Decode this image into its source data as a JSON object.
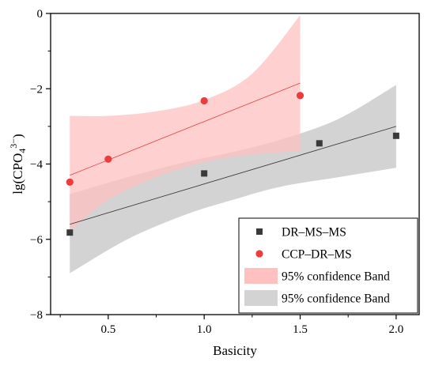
{
  "chart_data": {
    "type": "scatter",
    "xlabel": "Basicity",
    "ylabel": "lg(CPO4 3−)",
    "ylabel_parts": {
      "main": "lg(CPO",
      "sub": "4",
      "sup": "3−",
      "close": ")"
    },
    "xlim": [
      0.2,
      2.12
    ],
    "ylim": [
      -8,
      0
    ],
    "xticks": [
      0.5,
      1.0,
      1.5,
      2.0
    ],
    "xtick_labels": [
      "0.5",
      "1.0",
      "1.5",
      "2.0"
    ],
    "yticks": [
      0,
      -2,
      -4,
      -6,
      -8
    ],
    "ytick_labels": [
      "0",
      "−2",
      "−4",
      "−6",
      "−8"
    ],
    "grid": false,
    "legend_position": "bottom-right",
    "series": [
      {
        "name": "DR–MS–MS",
        "marker": "square",
        "color": "#3a3a3a",
        "points": [
          [
            0.3,
            -5.82
          ],
          [
            1.0,
            -4.25
          ],
          [
            1.6,
            -3.45
          ],
          [
            2.0,
            -3.25
          ]
        ],
        "fit_line": [
          [
            0.3,
            -5.6
          ],
          [
            2.0,
            -3.0
          ]
        ],
        "band_upper": [
          [
            0.3,
            -4.8
          ],
          [
            0.6,
            -4.35
          ],
          [
            0.9,
            -3.95
          ],
          [
            1.15,
            -3.68
          ],
          [
            1.4,
            -3.35
          ],
          [
            1.7,
            -2.8
          ],
          [
            2.0,
            -1.9
          ]
        ],
        "band_lower": [
          [
            0.3,
            -6.9
          ],
          [
            0.6,
            -6.0
          ],
          [
            0.9,
            -5.35
          ],
          [
            1.15,
            -4.95
          ],
          [
            1.4,
            -4.6
          ],
          [
            1.7,
            -4.35
          ],
          [
            2.0,
            -4.1
          ]
        ],
        "band_label": "95% confidence Band",
        "band_color": "#d3d3d3"
      },
      {
        "name": "CCP–DR–MS",
        "marker": "circle",
        "color": "#ee3b3b",
        "points": [
          [
            0.3,
            -4.48
          ],
          [
            0.5,
            -3.87
          ],
          [
            1.0,
            -2.32
          ],
          [
            1.5,
            -2.18
          ]
        ],
        "fit_line": [
          [
            0.3,
            -4.3
          ],
          [
            1.5,
            -1.85
          ]
        ],
        "band_upper": [
          [
            0.3,
            -2.72
          ],
          [
            0.5,
            -2.72
          ],
          [
            0.75,
            -2.6
          ],
          [
            1.0,
            -2.3
          ],
          [
            1.25,
            -1.6
          ],
          [
            1.5,
            -0.05
          ]
        ],
        "band_lower": [
          [
            0.3,
            -5.78
          ],
          [
            0.5,
            -4.95
          ],
          [
            0.75,
            -4.35
          ],
          [
            1.0,
            -3.95
          ],
          [
            1.25,
            -3.75
          ],
          [
            1.5,
            -3.65
          ]
        ],
        "band_label": "95% confidence Band",
        "band_color": "#ffc0c0"
      }
    ]
  }
}
